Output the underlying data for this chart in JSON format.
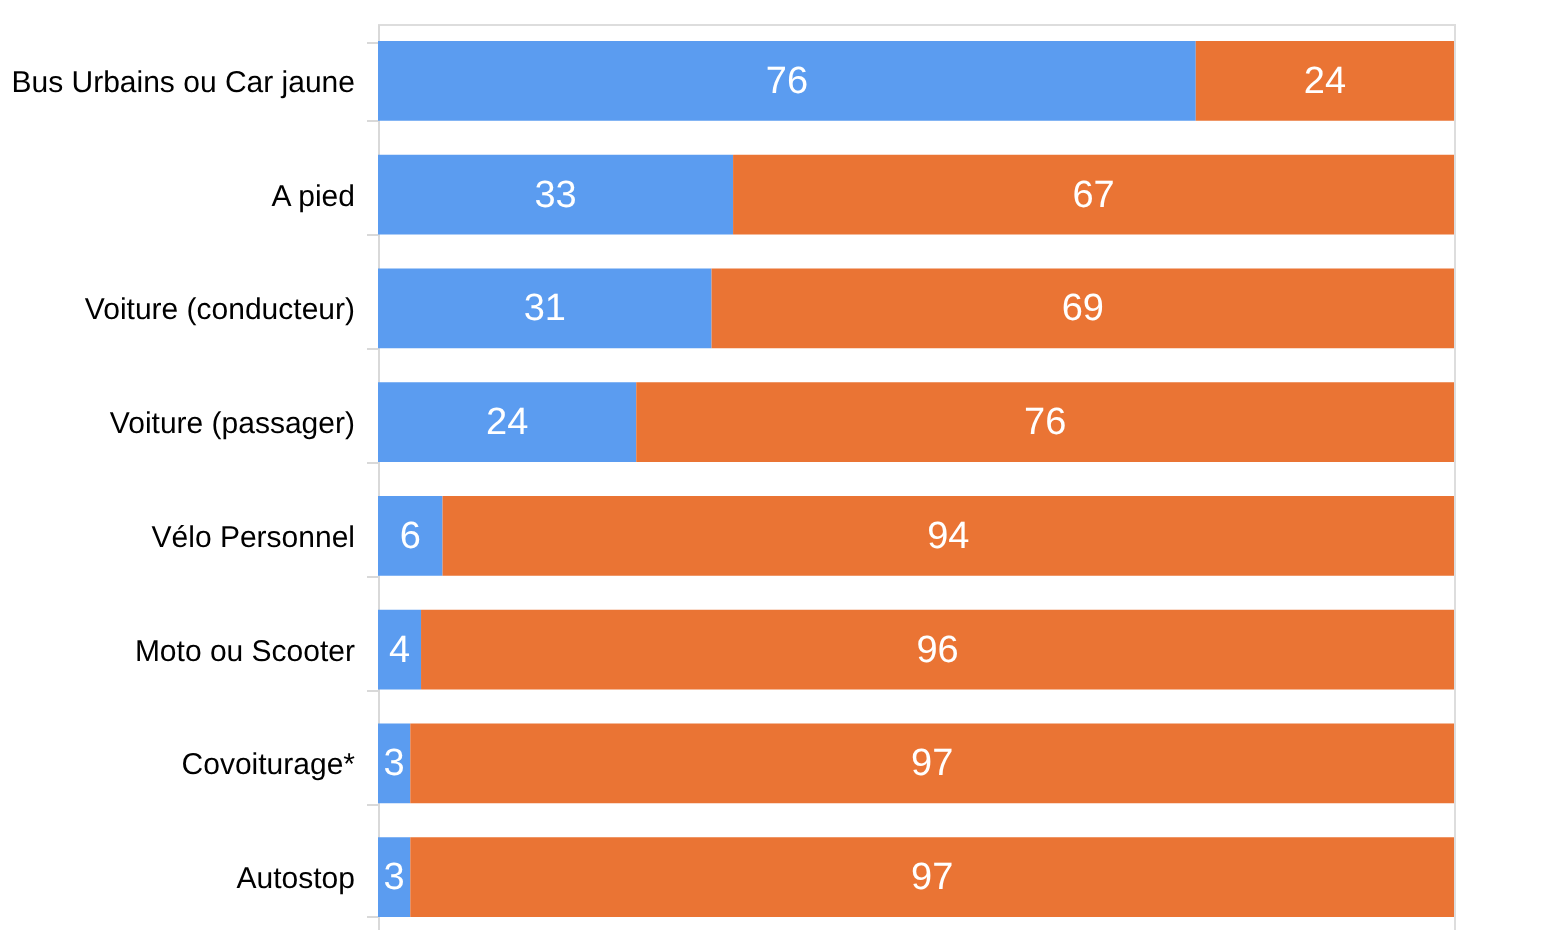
{
  "chart_data": {
    "type": "bar",
    "orientation": "horizontal",
    "stacked": true,
    "categories": [
      "Bus Urbains ou Car jaune",
      "A pied",
      "Voiture (conducteur)",
      "Voiture (passager)",
      "Vélo Personnel",
      "Moto ou Scooter",
      "Covoiturage*",
      "Autostop"
    ],
    "series": [
      {
        "color": "#5b9cf0",
        "values": [
          76,
          33,
          31,
          24,
          6,
          4,
          3,
          3
        ]
      },
      {
        "color": "#ea7434",
        "values": [
          24,
          67,
          69,
          76,
          94,
          96,
          97,
          97
        ]
      }
    ],
    "xlim": [
      0,
      100
    ],
    "data_labels": true,
    "tick_labels": "y"
  }
}
